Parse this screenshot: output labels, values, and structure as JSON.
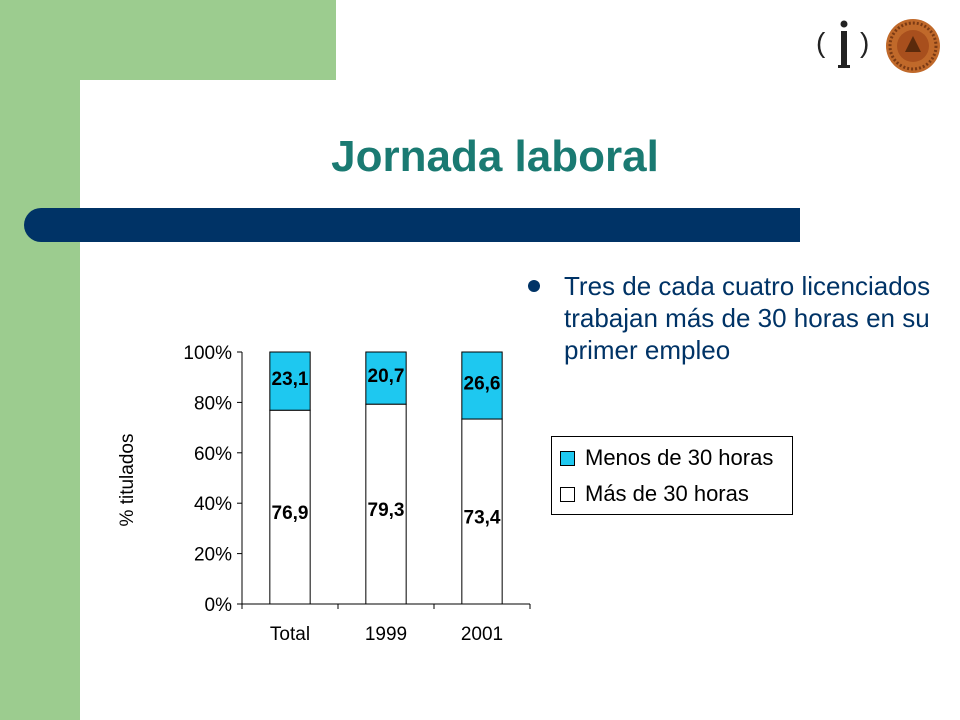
{
  "slide": {
    "title": "Jornada laboral",
    "bullets": [
      "Tres de cada cuatro licenciados trabajan más de 30 horas en su primer empleo"
    ],
    "colors": {
      "green": "#9ccc8f",
      "title": "#1a7a72",
      "bar": "#003366"
    }
  },
  "logos": {
    "left": "parenthesis-i-logo",
    "right": "university-seal-logo"
  },
  "chart_data": {
    "type": "bar",
    "stacked": true,
    "percent": true,
    "categories": [
      "Total",
      "1999",
      "2001"
    ],
    "series": [
      {
        "name": "Más de 30 horas",
        "values": [
          76.9,
          79.3,
          73.4
        ],
        "labels": [
          "76,9",
          "79,3",
          "73,4"
        ],
        "color": "#ffffff"
      },
      {
        "name": "Menos de 30 horas",
        "values": [
          23.1,
          20.7,
          26.6
        ],
        "labels": [
          "23,1",
          "20,7",
          "26,6"
        ],
        "color": "#1ec8f0"
      }
    ],
    "ylabel": "% titulados",
    "ylim": [
      0,
      100
    ],
    "yticks": [
      "0%",
      "20%",
      "40%",
      "60%",
      "80%",
      "100%"
    ],
    "legend": [
      {
        "label": "Menos de 30 horas",
        "color": "#1ec8f0"
      },
      {
        "label": "Más de 30 horas",
        "color": "#ffffff"
      }
    ],
    "legend_position": "right"
  }
}
